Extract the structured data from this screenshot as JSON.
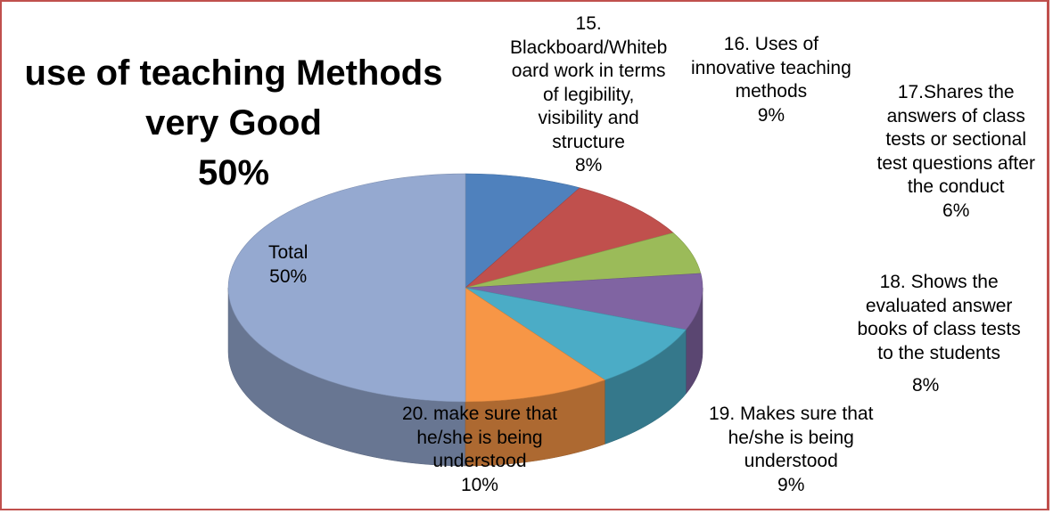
{
  "title_lines": [
    "use of teaching Methods",
    "very Good",
    "50%"
  ],
  "chart_data": {
    "type": "pie",
    "title": "use of teaching Methods very Good 50%",
    "three_d": true,
    "slices": [
      {
        "label": "15. Blackboard/Whiteboard work in terms of legibility, visibility and structure",
        "value": 8,
        "color": "#4f81bd",
        "label_lines": [
          "15.",
          "Blackboard/Whiteb",
          "oard work in terms",
          "of legibility,",
          "visibility and",
          "structure",
          "8%"
        ]
      },
      {
        "label": "16. Uses of innovative teaching methods",
        "value": 9,
        "color": "#c0504d",
        "label_lines": [
          "16. Uses of",
          "innovative teaching",
          "methods",
          "9%"
        ]
      },
      {
        "label": "17.Shares the answers of class tests or sectional test questions after the conduct",
        "value": 6,
        "color": "#9bbb59",
        "label_lines": [
          "17.Shares the",
          "answers of class",
          "tests or sectional",
          "test questions after",
          "the conduct",
          "6%"
        ]
      },
      {
        "label": "18. Shows the evaluated answer books of class tests to the students",
        "value": 8,
        "color": "#8064a2",
        "label_lines": [
          "18. Shows the",
          "evaluated answer",
          "books of class tests",
          "to the students",
          "8%"
        ]
      },
      {
        "label": "19. Makes sure that he/she is being understood",
        "value": 9,
        "color": "#4bacc6",
        "label_lines": [
          "19. Makes sure that",
          "he/she is being",
          "understood",
          "9%"
        ]
      },
      {
        "label": "20. make sure that he/she is being understood",
        "value": 10,
        "color": "#f79646",
        "label_lines": [
          "20. make sure that",
          "he/she is being",
          "understood",
          "10%"
        ]
      },
      {
        "label": "Total",
        "value": 50,
        "color": "#95a9d0",
        "label_lines": [
          "Total",
          "50%"
        ]
      }
    ]
  }
}
